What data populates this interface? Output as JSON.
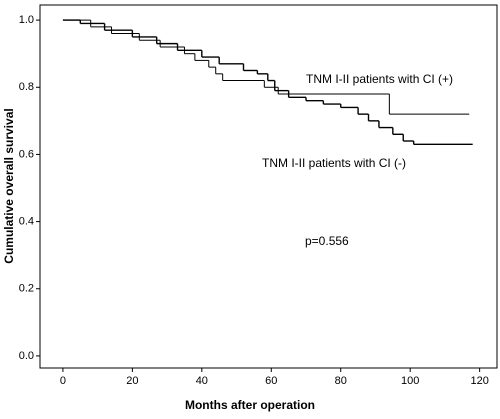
{
  "chart_data": {
    "type": "step",
    "x_label": "Months after operation",
    "y_label": "Cumulative overall survival",
    "annotations": [
      "TNM I-II patients with CI (+)",
      "TNM I-II patients with CI (-)",
      "p=0.556"
    ],
    "xlim": [
      -6.6,
      125
    ],
    "ylim": [
      -0.036,
      1.045
    ],
    "xticks": [
      0,
      20,
      40,
      60,
      80,
      100,
      120
    ],
    "yticks": [
      {
        "value": 0,
        "label": "0.0"
      },
      {
        "value": 0.2,
        "label": "0.2"
      },
      {
        "value": 0.4,
        "label": "0.4"
      },
      {
        "value": 0.6,
        "label": "0.6"
      },
      {
        "value": 0.8,
        "label": "0.8"
      },
      {
        "value": 1,
        "label": "1.0"
      }
    ],
    "grid": false,
    "series": [
      {
        "name": "TNM I-II patients with CI (+)",
        "color": "#000000",
        "x": [
          0,
          8,
          14,
          22,
          28,
          35,
          38,
          42,
          44,
          46,
          58,
          62,
          94,
          117
        ],
        "values": [
          1.0,
          0.98,
          0.96,
          0.94,
          0.92,
          0.9,
          0.88,
          0.86,
          0.84,
          0.82,
          0.8,
          0.78,
          0.72,
          0.72
        ]
      },
      {
        "name": "TNM I-II patients with CI (-)",
        "color": "#000000",
        "x": [
          0,
          5,
          12,
          20,
          27,
          33,
          40,
          45,
          52,
          56,
          59,
          61,
          65,
          70,
          75,
          80,
          85,
          88,
          91,
          95,
          98,
          101,
          118
        ],
        "values": [
          1.0,
          0.99,
          0.97,
          0.95,
          0.93,
          0.91,
          0.89,
          0.87,
          0.85,
          0.84,
          0.82,
          0.79,
          0.77,
          0.76,
          0.75,
          0.74,
          0.72,
          0.7,
          0.68,
          0.66,
          0.64,
          0.63,
          0.63
        ]
      }
    ]
  }
}
